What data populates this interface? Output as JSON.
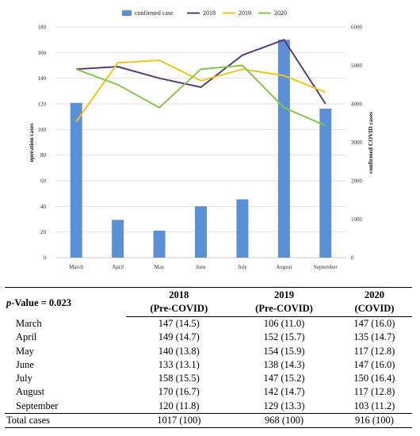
{
  "chart_data": {
    "type": "bar+line",
    "categories": [
      "March",
      "April",
      "May",
      "June",
      "July",
      "August",
      "September"
    ],
    "bar_series": {
      "name": "confirmed case",
      "color": "#5b8fd6",
      "values": [
        4025,
        983,
        700,
        1333,
        1517,
        5667,
        3875
      ]
    },
    "line_series": [
      {
        "name": "2018",
        "color": "#5a3a78",
        "values": [
          147,
          149,
          140,
          133,
          158,
          170,
          120
        ]
      },
      {
        "name": "2019",
        "color": "#f2c318",
        "values": [
          106,
          152,
          154,
          138,
          147,
          142,
          129
        ]
      },
      {
        "name": "2020",
        "color": "#86c64b",
        "values": [
          147,
          135,
          117,
          147,
          150,
          117,
          103
        ]
      }
    ],
    "ylabel_left": "operation cases",
    "ylabel_right": "confirmed COVID cases",
    "ylim_left": [
      0,
      180
    ],
    "yticks_left": [
      0,
      20,
      40,
      60,
      80,
      100,
      120,
      140,
      160,
      180
    ],
    "ylim_right": [
      0,
      6000
    ],
    "yticks_right": [
      0,
      1000,
      2000,
      3000,
      4000,
      5000,
      6000
    ],
    "legend_position": "top",
    "grid": true
  },
  "table": {
    "pvalue_label": "p-Value = 0.023",
    "headers": [
      {
        "year": "2018",
        "period": "(Pre-COVID)"
      },
      {
        "year": "2019",
        "period": "(Pre-COVID)"
      },
      {
        "year": "2020",
        "period": "(COVID)"
      }
    ],
    "rows": [
      {
        "month": "March",
        "v2018": "147 (14.5)",
        "v2019": "106 (11.0)",
        "v2020": "147 (16.0)"
      },
      {
        "month": "April",
        "v2018": "149 (14.7)",
        "v2019": "152 (15.7)",
        "v2020": "135 (14.7)"
      },
      {
        "month": "May",
        "v2018": "140 (13.8)",
        "v2019": "154 (15.9)",
        "v2020": "117 (12.8)"
      },
      {
        "month": "June",
        "v2018": "133 (13.1)",
        "v2019": "138 (14.3)",
        "v2020": "147 (16.0)"
      },
      {
        "month": "July",
        "v2018": "158 (15.5)",
        "v2019": "147 (15.2)",
        "v2020": "150 (16.4)"
      },
      {
        "month": "August",
        "v2018": "170 (16.7)",
        "v2019": "142 (14.7)",
        "v2020": "117 (12.8)"
      },
      {
        "month": "September",
        "v2018": "120 (11.8)",
        "v2019": "129 (13.3)",
        "v2020": "103 (11.2)"
      }
    ],
    "total": {
      "label": "Total cases",
      "v2018": "1017 (100)",
      "v2019": "968 (100)",
      "v2020": "916 (100)"
    }
  }
}
